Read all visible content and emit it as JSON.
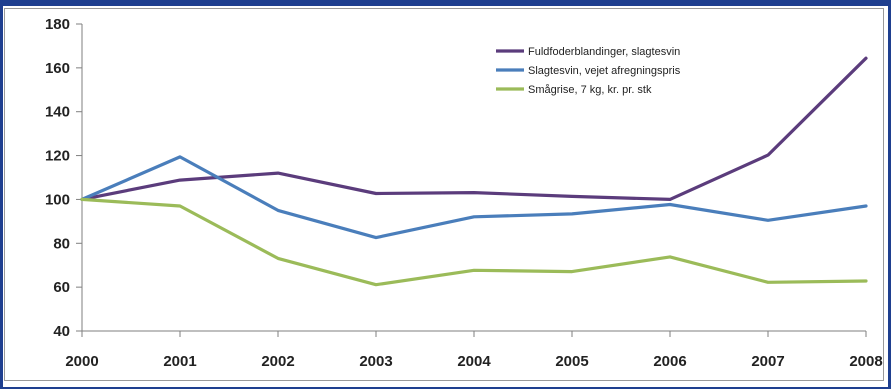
{
  "chart_data": {
    "type": "line",
    "title": "",
    "xlabel": "",
    "ylabel": "",
    "x": [
      "2000",
      "2001",
      "2002",
      "2003",
      "2004",
      "2005",
      "2006",
      "2007",
      "2008"
    ],
    "ylim": [
      40,
      180
    ],
    "yticks": [
      40,
      60,
      80,
      100,
      120,
      140,
      160,
      180
    ],
    "grid": false,
    "legend_position": "top-right",
    "series": [
      {
        "name": "Fuldfoderblandinger, slagtesvin",
        "color": "#5b3c7c",
        "values": [
          100,
          108.8,
          112,
          102.7,
          103.1,
          101.4,
          100,
          120.2,
          164.4
        ]
      },
      {
        "name": "Slagtesvin, vejet afregningspris",
        "color": "#4a7ebb",
        "values": [
          100,
          119.4,
          95,
          82.6,
          92.1,
          93.4,
          97.7,
          90.5,
          97
        ]
      },
      {
        "name": "Smågrise, 7 kg, kr. pr. stk",
        "color": "#9bbb59",
        "values": [
          100,
          97,
          73.1,
          61.1,
          67.7,
          67.1,
          73.8,
          62.2,
          62.8
        ]
      }
    ]
  }
}
